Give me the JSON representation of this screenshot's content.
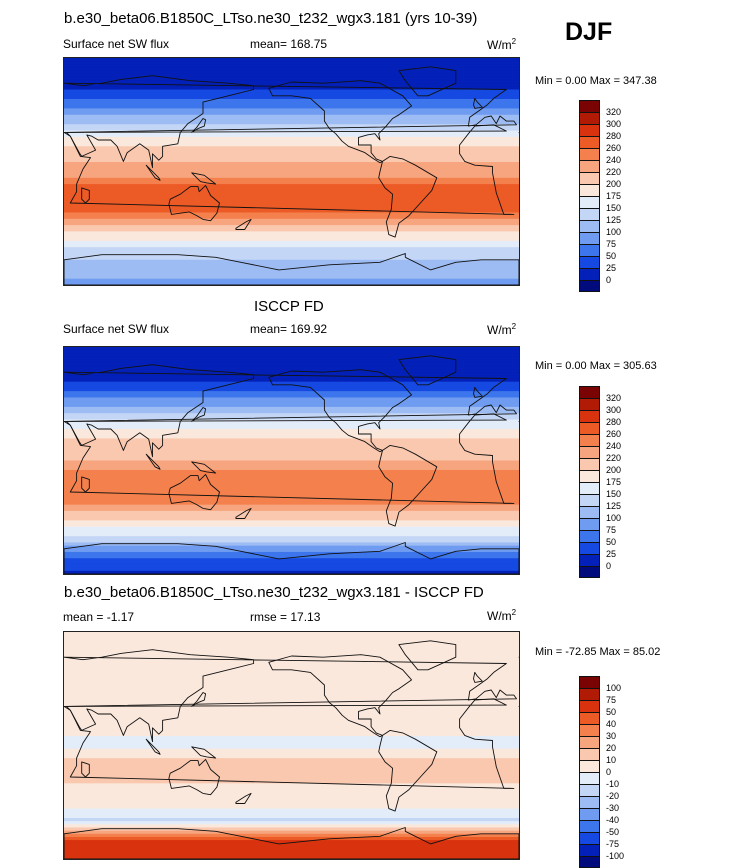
{
  "season": "DJF",
  "panels": [
    {
      "title": "b.e30_beta06.B1850C_LTso.ne30_t232_wgx3.181 (yrs 10-39)",
      "left_label": "Surface net SW flux",
      "center_label": "mean= 168.75",
      "units": "W/m",
      "units_sup": "2",
      "minmax": "Min =   0.00 Max = 347.38",
      "colorbar_ticks": [
        "320",
        "300",
        "280",
        "260",
        "240",
        "220",
        "200",
        "175",
        "150",
        "125",
        "100",
        "75",
        "50",
        "25",
        "0"
      ]
    },
    {
      "title": "ISCCP FD",
      "left_label": "Surface net SW flux",
      "center_label": "mean= 169.92",
      "units": "W/m",
      "units_sup": "2",
      "minmax": "Min =   0.00 Max = 305.63",
      "colorbar_ticks": [
        "320",
        "300",
        "280",
        "260",
        "240",
        "220",
        "200",
        "175",
        "150",
        "125",
        "100",
        "75",
        "50",
        "25",
        "0"
      ]
    },
    {
      "title": "b.e30_beta06.B1850C_LTso.ne30_t232_wgx3.181 - ISCCP FD",
      "left_label": "mean =  -1.17",
      "center_label": "rmse =  17.13",
      "units": "W/m",
      "units_sup": "2",
      "minmax": "Min = -72.85 Max =  85.02",
      "colorbar_ticks": [
        "100",
        "75",
        "50",
        "40",
        "30",
        "20",
        "10",
        "0",
        "-10",
        "-20",
        "-30",
        "-40",
        "-50",
        "-75",
        "-100"
      ]
    }
  ],
  "colorbar_colors": [
    "#7a0403",
    "#b11b06",
    "#d8320e",
    "#ec5a26",
    "#f4814d",
    "#f7a57f",
    "#f9c8af",
    "#fbe8dc",
    "#e3ecf9",
    "#c4d6f6",
    "#9dbcf3",
    "#6f9cf0",
    "#3d76ec",
    "#1549e2",
    "#0321b8",
    "#020b7c"
  ],
  "chart_data": [
    {
      "type": "heatmap",
      "title": "b.e30_beta06.B1850C_LTso.ne30_t232_wgx3.181 (yrs 10-39)",
      "variable": "Surface net SW flux",
      "units": "W/m2",
      "mean": 168.75,
      "min": 0.0,
      "max": 347.38,
      "levels": [
        0,
        25,
        50,
        75,
        100,
        125,
        150,
        175,
        200,
        220,
        240,
        260,
        280,
        300,
        320
      ],
      "zonal_profile": {
        "lat": [
          90,
          75,
          60,
          45,
          30,
          15,
          0,
          -15,
          -30,
          -45,
          -60,
          -75,
          -90
        ],
        "value": [
          0,
          5,
          35,
          95,
          165,
          215,
          225,
          275,
          265,
          210,
          150,
          110,
          95
        ]
      }
    },
    {
      "type": "heatmap",
      "title": "ISCCP FD",
      "variable": "Surface net SW flux",
      "units": "W/m2",
      "mean": 169.92,
      "min": 0.0,
      "max": 305.63,
      "levels": [
        0,
        25,
        50,
        75,
        100,
        125,
        150,
        175,
        200,
        220,
        240,
        260,
        280,
        300,
        320
      ],
      "zonal_profile": {
        "lat": [
          90,
          75,
          60,
          45,
          30,
          15,
          0,
          -15,
          -30,
          -45,
          -60,
          -75,
          -90
        ],
        "value": [
          0,
          5,
          30,
          90,
          160,
          210,
          220,
          260,
          255,
          205,
          150,
          55,
          20
        ]
      }
    },
    {
      "type": "heatmap",
      "title": "b.e30_beta06.B1850C_LTso.ne30_t232_wgx3.181 - ISCCP FD",
      "units": "W/m2",
      "mean": -1.17,
      "rmse": 17.13,
      "min": -72.85,
      "max": 85.02,
      "levels": [
        -100,
        -75,
        -50,
        -40,
        -30,
        -20,
        -10,
        0,
        10,
        20,
        30,
        40,
        50,
        75,
        100
      ],
      "zonal_profile": {
        "lat": [
          90,
          75,
          60,
          45,
          30,
          15,
          0,
          -15,
          -30,
          -45,
          -60,
          -75,
          -90
        ],
        "value": [
          0,
          0,
          5,
          5,
          5,
          5,
          -5,
          15,
          10,
          5,
          -15,
          55,
          75
        ]
      }
    }
  ]
}
